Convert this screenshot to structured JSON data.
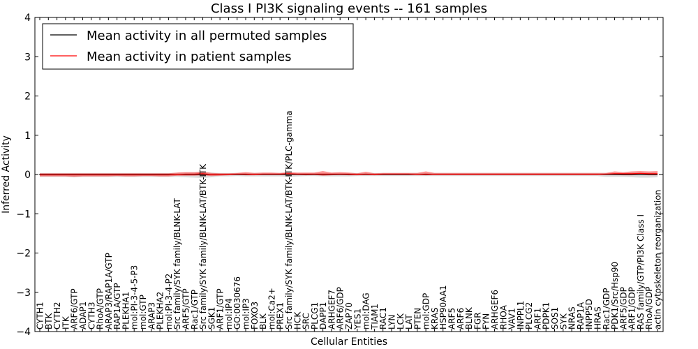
{
  "chart_data": {
    "type": "line",
    "title": "Class I PI3K signaling events -- 161 samples",
    "xlabel": "Cellular Entities",
    "ylabel": "Inferred Activity",
    "ylim": [
      -4,
      4
    ],
    "yticks": [
      -4,
      -3,
      -2,
      -1,
      0,
      1,
      2,
      3,
      4
    ],
    "ytick_labels": [
      "−4",
      "−3",
      "−2",
      "−1",
      "0",
      "1",
      "2",
      "3",
      "4"
    ],
    "grid": false,
    "legend_position": "top-left",
    "categories": [
      "CYTH1",
      "BTK",
      "CYTH2",
      "ITK",
      "ARF6/GTP",
      "ADAP1",
      "CYTH3",
      "RhoA/GTP",
      "ARAP3/RAP1A/GTP",
      "RAP1A/GTP",
      "PLEKHA1",
      "mol:PI-3-4-5-P3",
      "mol:GTP",
      "ARAP3",
      "PLEKHA2",
      "mol:PI-3-4-P2",
      "Src family/SYK family/BLNK-LAT",
      "ARF5/GTP",
      "Rac1/GTP",
      "Src family/SYK family/BLNK-LAT/BTK-ITK",
      "SGK1",
      "ARF1/GTP",
      "mol:IP4",
      "GO:0030676",
      "mol:IP3",
      "FOXO3",
      "BLK",
      "mol:Ca2+",
      "PREX1",
      "Src family/SYK family/BLNK-LAT/BTK-ITK/PLC-gamma",
      "HCK",
      "SRC",
      "PLCG1",
      "DAPP1",
      "ARHGEF7",
      "ARF6/GDP",
      "ZAP70",
      "YES1",
      "mol:DAG",
      "TIAM1",
      "RAC1",
      "LYN",
      "LCK",
      "LAT",
      "PTEN",
      "mol:GDP",
      "KRAS",
      "HSP90AA1",
      "ARF5",
      "ARF6",
      "BLNK",
      "FGR",
      "FYN",
      "ARHGEF6",
      "RHOA",
      "VAV1",
      "INPPL1",
      "PLCG2",
      "ARF1",
      "PDPK1",
      "SOS1",
      "SYK",
      "NRAS",
      "RAP1A",
      "INPP5D",
      "HRAS",
      "Rac1/GDP",
      "PDK1/Src/Hsp90",
      "ARF5/GDP",
      "ARF1/GDP",
      "RAS family/GTP/PI3K Class I",
      "RhoA/GDP",
      "actin cytoskeleton reorganization"
    ],
    "series": [
      {
        "name": "Mean activity in all permuted samples",
        "color": "#000000",
        "values": [
          0,
          0,
          0,
          0,
          0,
          0,
          0,
          0,
          0,
          0,
          0,
          0,
          0,
          0,
          0,
          0,
          0,
          0,
          0,
          0,
          0,
          0,
          0,
          0,
          0,
          0,
          0,
          0,
          0,
          0,
          0,
          0,
          0,
          0,
          0,
          0,
          0,
          0,
          0,
          0,
          0,
          0,
          0,
          0,
          0,
          0,
          0,
          0,
          0,
          0,
          0,
          0,
          0,
          0,
          0,
          0,
          0,
          0,
          0,
          0,
          0,
          0,
          0,
          0,
          0,
          0,
          0,
          0,
          0,
          0,
          0,
          0,
          0
        ],
        "band_lower": [
          -0.06,
          -0.06,
          -0.06,
          -0.06,
          -0.07,
          -0.06,
          -0.06,
          -0.06,
          -0.06,
          -0.06,
          -0.06,
          -0.06,
          -0.06,
          -0.06,
          -0.06,
          -0.06,
          -0.06,
          -0.07,
          -0.08,
          -0.09,
          -0.07,
          -0.05,
          -0.05,
          -0.04,
          -0.05,
          -0.05,
          -0.05,
          -0.05,
          -0.05,
          -0.06,
          -0.05,
          -0.04,
          -0.04,
          -0.05,
          -0.05,
          -0.05,
          -0.05,
          -0.04,
          -0.04,
          -0.04,
          -0.04,
          -0.04,
          -0.04,
          -0.04,
          -0.04,
          -0.04,
          -0.04,
          -0.04,
          -0.04,
          -0.04,
          -0.04,
          -0.04,
          -0.04,
          -0.04,
          -0.04,
          -0.04,
          -0.04,
          -0.04,
          -0.04,
          -0.04,
          -0.04,
          -0.04,
          -0.04,
          -0.04,
          -0.04,
          -0.04,
          -0.06,
          -0.06,
          -0.06,
          -0.07,
          -0.08,
          -0.08,
          -0.07
        ],
        "band_upper": [
          0.04,
          0.04,
          0.04,
          0.04,
          0.04,
          0.04,
          0.04,
          0.04,
          0.04,
          0.04,
          0.04,
          0.04,
          0.04,
          0.04,
          0.04,
          0.04,
          0.04,
          0.05,
          0.05,
          0.05,
          0.05,
          0.04,
          0.04,
          0.04,
          0.04,
          0.04,
          0.04,
          0.04,
          0.04,
          0.04,
          0.04,
          0.04,
          0.04,
          0.04,
          0.04,
          0.04,
          0.04,
          0.04,
          0.04,
          0.04,
          0.04,
          0.04,
          0.04,
          0.04,
          0.04,
          0.04,
          0.04,
          0.04,
          0.04,
          0.04,
          0.04,
          0.04,
          0.04,
          0.04,
          0.04,
          0.04,
          0.04,
          0.04,
          0.04,
          0.04,
          0.04,
          0.04,
          0.04,
          0.04,
          0.04,
          0.04,
          0.04,
          0.04,
          0.04,
          0.05,
          0.05,
          0.05,
          0.05
        ]
      },
      {
        "name": "Mean activity in patient samples",
        "color": "#ff0000",
        "values": [
          -0.01,
          -0.01,
          -0.01,
          -0.01,
          -0.01,
          -0.01,
          -0.01,
          -0.01,
          -0.01,
          -0.01,
          -0.01,
          -0.01,
          -0.01,
          -0.01,
          -0.01,
          -0.01,
          0.0,
          0.01,
          0.01,
          0.02,
          0.0,
          0.0,
          0.0,
          0.01,
          0.01,
          0.0,
          0.01,
          0.01,
          0.01,
          0.02,
          0.01,
          0.01,
          0.01,
          0.01,
          0.01,
          0.01,
          0.01,
          0.0,
          0.01,
          0.0,
          0.01,
          0.01,
          0.01,
          0.01,
          0.0,
          0.01,
          0.0,
          0.0,
          0.0,
          0.0,
          0.0,
          0.0,
          0.0,
          0.0,
          0.0,
          0.0,
          0.0,
          0.0,
          0.0,
          0.0,
          0.0,
          0.0,
          0.0,
          0.0,
          0.0,
          0.0,
          0.01,
          0.02,
          0.02,
          0.02,
          0.03,
          0.02,
          0.02
        ],
        "band_lower": [
          -0.05,
          -0.05,
          -0.05,
          -0.05,
          -0.06,
          -0.05,
          -0.05,
          -0.05,
          -0.05,
          -0.04,
          -0.05,
          -0.05,
          -0.04,
          -0.04,
          -0.05,
          -0.05,
          -0.03,
          -0.03,
          -0.03,
          -0.02,
          -0.04,
          -0.03,
          -0.02,
          -0.01,
          -0.02,
          -0.02,
          -0.01,
          -0.01,
          -0.01,
          0.0,
          -0.01,
          -0.02,
          -0.01,
          -0.03,
          -0.02,
          -0.01,
          -0.02,
          -0.02,
          -0.01,
          -0.02,
          -0.01,
          -0.01,
          -0.01,
          -0.01,
          -0.01,
          -0.02,
          -0.01,
          -0.01,
          -0.01,
          -0.01,
          -0.01,
          -0.01,
          -0.01,
          -0.01,
          -0.01,
          -0.01,
          -0.01,
          -0.01,
          -0.01,
          -0.01,
          -0.01,
          -0.01,
          -0.01,
          -0.01,
          -0.01,
          -0.01,
          -0.01,
          -0.01,
          -0.02,
          -0.02,
          -0.01,
          -0.02,
          -0.02
        ],
        "band_upper": [
          0.03,
          0.03,
          0.03,
          0.03,
          0.03,
          0.03,
          0.03,
          0.03,
          0.03,
          0.03,
          0.03,
          0.03,
          0.03,
          0.03,
          0.03,
          0.03,
          0.05,
          0.06,
          0.06,
          0.08,
          0.04,
          0.03,
          0.03,
          0.04,
          0.06,
          0.04,
          0.05,
          0.05,
          0.04,
          0.06,
          0.05,
          0.05,
          0.05,
          0.09,
          0.05,
          0.06,
          0.05,
          0.03,
          0.07,
          0.03,
          0.04,
          0.04,
          0.04,
          0.04,
          0.04,
          0.08,
          0.04,
          0.04,
          0.04,
          0.04,
          0.04,
          0.04,
          0.04,
          0.04,
          0.04,
          0.04,
          0.04,
          0.04,
          0.04,
          0.04,
          0.04,
          0.04,
          0.04,
          0.04,
          0.04,
          0.04,
          0.04,
          0.08,
          0.06,
          0.08,
          0.09,
          0.08,
          0.09
        ]
      }
    ],
    "band_colors": {
      "permuted": "#999999",
      "patient": "#ff0000"
    }
  }
}
